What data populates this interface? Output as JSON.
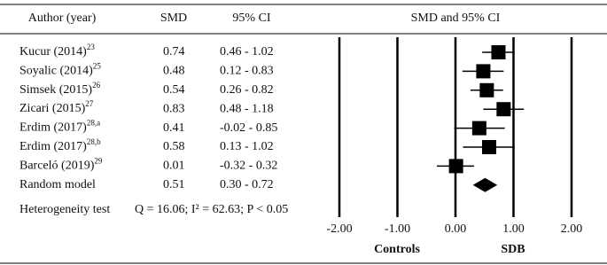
{
  "chart_data": {
    "type": "forest",
    "headers": {
      "author": "Author (year)",
      "smd": "SMD",
      "ci": "95% CI",
      "plot": "SMD and 95% CI"
    },
    "studies": [
      {
        "name": "Kucur (2014)",
        "ref": "23"
      },
      {
        "name": "Soyalic (2014)",
        "ref": "25"
      },
      {
        "name": "Simsek (2015)",
        "ref": "26"
      },
      {
        "name": "Zicari (2015)",
        "ref": "27"
      },
      {
        "name": "Erdim (2017)",
        "ref": "28,a"
      },
      {
        "name": "Erdim (2017)",
        "ref": "28,b"
      },
      {
        "name": "Barceló (2019)",
        "ref": "29"
      }
    ],
    "values": [
      0.74,
      0.48,
      0.54,
      0.83,
      0.41,
      0.58,
      0.01
    ],
    "value_labels": [
      "0.74",
      "0.48",
      "0.54",
      "0.83",
      "0.41",
      "0.58",
      "0.01"
    ],
    "ci_lower": [
      0.46,
      0.12,
      0.26,
      0.48,
      -0.02,
      0.13,
      -0.32
    ],
    "ci_upper": [
      1.02,
      0.83,
      0.82,
      1.18,
      0.85,
      1.02,
      0.32
    ],
    "ci_labels": [
      "0.46 - 1.02",
      "0.12 - 0.83",
      "0.26 - 0.82",
      "0.48 - 1.18",
      "-0.02 - 0.85",
      "0.13 - 1.02",
      "-0.32 - 0.32"
    ],
    "pooled": {
      "name": "Random model",
      "value": 0.51,
      "value_label": "0.51",
      "lower": 0.3,
      "upper": 0.72,
      "ci_label": "0.30 - 0.72"
    },
    "heterogeneity": {
      "label": "Heterogeneity test",
      "text": "Q = 16.06; I² = 62.63; P < 0.05"
    },
    "xlim": [
      -2,
      2
    ],
    "xticks": [
      {
        "value": -2,
        "label": "-2.00"
      },
      {
        "value": -1,
        "label": "-1.00"
      },
      {
        "value": 0,
        "label": "0.00"
      },
      {
        "value": 1,
        "label": "1.00"
      },
      {
        "value": 2,
        "label": "2.00"
      }
    ],
    "grid": true,
    "left_label": "Controls",
    "right_label": "SDB",
    "color": "#000000"
  }
}
